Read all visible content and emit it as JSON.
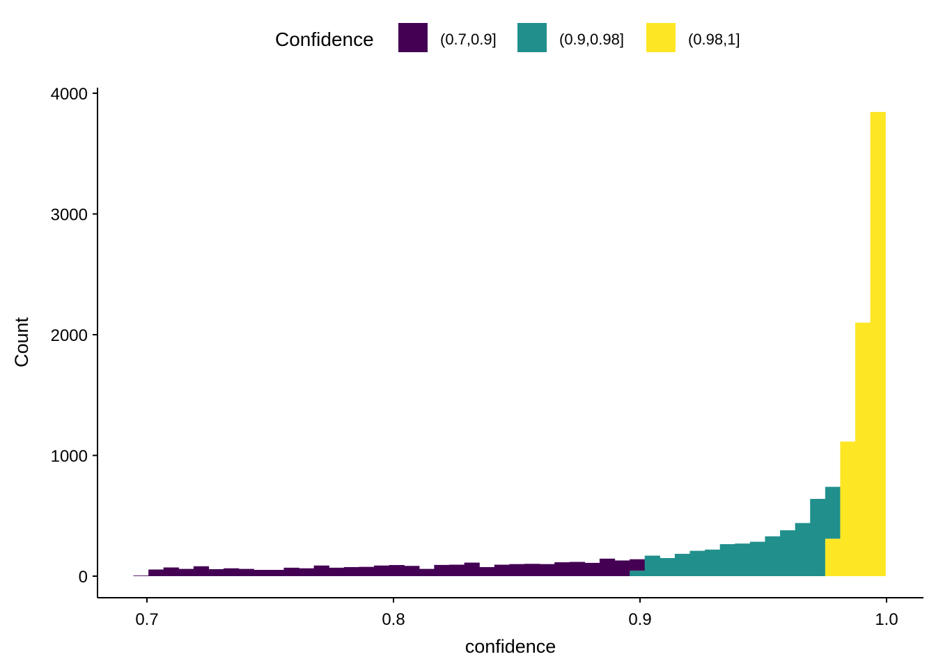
{
  "chart_data": {
    "type": "histogram",
    "xlabel": "confidence",
    "ylabel": "Count",
    "xlim": [
      0.68,
      1.015
    ],
    "ylim": [
      0,
      4000
    ],
    "x_ticks": [
      "0.7",
      "0.8",
      "0.9",
      "1.0"
    ],
    "x_tick_values": [
      0.7,
      0.8,
      0.9,
      1.0
    ],
    "y_ticks": [
      "0",
      "1000",
      "2000",
      "3000",
      "4000"
    ],
    "y_tick_values": [
      0,
      1000,
      2000,
      3000,
      4000
    ],
    "legend": {
      "title": "Confidence",
      "position": "top",
      "items": [
        {
          "label": "(0.7,0.9]",
          "color": "#440154"
        },
        {
          "label": "(0.9,0.98]",
          "color": "#21908C"
        },
        {
          "label": "(0.98,1]",
          "color": "#FDE725"
        }
      ]
    },
    "grid": false,
    "bin_width": 0.0061,
    "bins": [
      {
        "x0": 0.6945,
        "x1": 0.7006,
        "segments": [
          {
            "group": "(0.7,0.9]",
            "value": 5
          }
        ]
      },
      {
        "x0": 0.7006,
        "x1": 0.7067,
        "segments": [
          {
            "group": "(0.7,0.9]",
            "value": 55
          }
        ]
      },
      {
        "x0": 0.7067,
        "x1": 0.7128,
        "segments": [
          {
            "group": "(0.7,0.9]",
            "value": 72
          }
        ]
      },
      {
        "x0": 0.7128,
        "x1": 0.7189,
        "segments": [
          {
            "group": "(0.7,0.9]",
            "value": 60
          }
        ]
      },
      {
        "x0": 0.7189,
        "x1": 0.725,
        "segments": [
          {
            "group": "(0.7,0.9]",
            "value": 82
          }
        ]
      },
      {
        "x0": 0.725,
        "x1": 0.7311,
        "segments": [
          {
            "group": "(0.7,0.9]",
            "value": 58
          }
        ]
      },
      {
        "x0": 0.7311,
        "x1": 0.7372,
        "segments": [
          {
            "group": "(0.7,0.9]",
            "value": 65
          }
        ]
      },
      {
        "x0": 0.7372,
        "x1": 0.7433,
        "segments": [
          {
            "group": "(0.7,0.9]",
            "value": 60
          }
        ]
      },
      {
        "x0": 0.7433,
        "x1": 0.7494,
        "segments": [
          {
            "group": "(0.7,0.9]",
            "value": 52
          }
        ]
      },
      {
        "x0": 0.7494,
        "x1": 0.7555,
        "segments": [
          {
            "group": "(0.7,0.9]",
            "value": 52
          }
        ]
      },
      {
        "x0": 0.7555,
        "x1": 0.7616,
        "segments": [
          {
            "group": "(0.7,0.9]",
            "value": 70
          }
        ]
      },
      {
        "x0": 0.7616,
        "x1": 0.7677,
        "segments": [
          {
            "group": "(0.7,0.9]",
            "value": 65
          }
        ]
      },
      {
        "x0": 0.7677,
        "x1": 0.7738,
        "segments": [
          {
            "group": "(0.7,0.9]",
            "value": 88
          }
        ]
      },
      {
        "x0": 0.7738,
        "x1": 0.7799,
        "segments": [
          {
            "group": "(0.7,0.9]",
            "value": 70
          }
        ]
      },
      {
        "x0": 0.7799,
        "x1": 0.786,
        "segments": [
          {
            "group": "(0.7,0.9]",
            "value": 75
          }
        ]
      },
      {
        "x0": 0.786,
        "x1": 0.7921,
        "segments": [
          {
            "group": "(0.7,0.9]",
            "value": 77
          }
        ]
      },
      {
        "x0": 0.7921,
        "x1": 0.7982,
        "segments": [
          {
            "group": "(0.7,0.9]",
            "value": 88
          }
        ]
      },
      {
        "x0": 0.7982,
        "x1": 0.8043,
        "segments": [
          {
            "group": "(0.7,0.9]",
            "value": 92
          }
        ]
      },
      {
        "x0": 0.8043,
        "x1": 0.8104,
        "segments": [
          {
            "group": "(0.7,0.9]",
            "value": 85
          }
        ]
      },
      {
        "x0": 0.8104,
        "x1": 0.8165,
        "segments": [
          {
            "group": "(0.7,0.9]",
            "value": 60
          }
        ]
      },
      {
        "x0": 0.8165,
        "x1": 0.8226,
        "segments": [
          {
            "group": "(0.7,0.9]",
            "value": 93
          }
        ]
      },
      {
        "x0": 0.8226,
        "x1": 0.8287,
        "segments": [
          {
            "group": "(0.7,0.9]",
            "value": 95
          }
        ]
      },
      {
        "x0": 0.8287,
        "x1": 0.8348,
        "segments": [
          {
            "group": "(0.7,0.9]",
            "value": 112
          }
        ]
      },
      {
        "x0": 0.8348,
        "x1": 0.8409,
        "segments": [
          {
            "group": "(0.7,0.9]",
            "value": 75
          }
        ]
      },
      {
        "x0": 0.8409,
        "x1": 0.847,
        "segments": [
          {
            "group": "(0.7,0.9]",
            "value": 95
          }
        ]
      },
      {
        "x0": 0.847,
        "x1": 0.8531,
        "segments": [
          {
            "group": "(0.7,0.9]",
            "value": 100
          }
        ]
      },
      {
        "x0": 0.8531,
        "x1": 0.8592,
        "segments": [
          {
            "group": "(0.7,0.9]",
            "value": 102
          }
        ]
      },
      {
        "x0": 0.8592,
        "x1": 0.8653,
        "segments": [
          {
            "group": "(0.7,0.9]",
            "value": 100
          }
        ]
      },
      {
        "x0": 0.8653,
        "x1": 0.8714,
        "segments": [
          {
            "group": "(0.7,0.9]",
            "value": 115
          }
        ]
      },
      {
        "x0": 0.8714,
        "x1": 0.8775,
        "segments": [
          {
            "group": "(0.7,0.9]",
            "value": 118
          }
        ]
      },
      {
        "x0": 0.8775,
        "x1": 0.8836,
        "segments": [
          {
            "group": "(0.7,0.9]",
            "value": 110
          }
        ]
      },
      {
        "x0": 0.8836,
        "x1": 0.8897,
        "segments": [
          {
            "group": "(0.7,0.9]",
            "value": 145
          }
        ]
      },
      {
        "x0": 0.8897,
        "x1": 0.8958,
        "segments": [
          {
            "group": "(0.7,0.9]",
            "value": 130
          }
        ]
      },
      {
        "x0": 0.8958,
        "x1": 0.9019,
        "segments": [
          {
            "group": "(0.9,0.98]",
            "value": 45
          },
          {
            "group": "(0.7,0.9]",
            "value": 95
          }
        ]
      },
      {
        "x0": 0.9019,
        "x1": 0.908,
        "segments": [
          {
            "group": "(0.9,0.98]",
            "value": 170
          }
        ]
      },
      {
        "x0": 0.908,
        "x1": 0.9141,
        "segments": [
          {
            "group": "(0.9,0.98]",
            "value": 150
          }
        ]
      },
      {
        "x0": 0.9141,
        "x1": 0.9202,
        "segments": [
          {
            "group": "(0.9,0.98]",
            "value": 185
          }
        ]
      },
      {
        "x0": 0.9202,
        "x1": 0.9263,
        "segments": [
          {
            "group": "(0.9,0.98]",
            "value": 210
          }
        ]
      },
      {
        "x0": 0.9263,
        "x1": 0.9324,
        "segments": [
          {
            "group": "(0.9,0.98]",
            "value": 220
          }
        ]
      },
      {
        "x0": 0.9324,
        "x1": 0.9385,
        "segments": [
          {
            "group": "(0.9,0.98]",
            "value": 265
          }
        ]
      },
      {
        "x0": 0.9385,
        "x1": 0.9446,
        "segments": [
          {
            "group": "(0.9,0.98]",
            "value": 270
          }
        ]
      },
      {
        "x0": 0.9446,
        "x1": 0.9507,
        "segments": [
          {
            "group": "(0.9,0.98]",
            "value": 285
          }
        ]
      },
      {
        "x0": 0.9507,
        "x1": 0.9568,
        "segments": [
          {
            "group": "(0.9,0.98]",
            "value": 330
          }
        ]
      },
      {
        "x0": 0.9568,
        "x1": 0.9629,
        "segments": [
          {
            "group": "(0.9,0.98]",
            "value": 380
          }
        ]
      },
      {
        "x0": 0.9629,
        "x1": 0.969,
        "segments": [
          {
            "group": "(0.9,0.98]",
            "value": 440
          }
        ]
      },
      {
        "x0": 0.969,
        "x1": 0.9751,
        "segments": [
          {
            "group": "(0.9,0.98]",
            "value": 640
          }
        ]
      },
      {
        "x0": 0.9751,
        "x1": 0.9812,
        "segments": [
          {
            "group": "(0.98,1]",
            "value": 310
          },
          {
            "group": "(0.9,0.98]",
            "value": 430
          }
        ]
      },
      {
        "x0": 0.9812,
        "x1": 0.9873,
        "segments": [
          {
            "group": "(0.98,1]",
            "value": 1115
          }
        ]
      },
      {
        "x0": 0.9873,
        "x1": 0.9934,
        "segments": [
          {
            "group": "(0.98,1]",
            "value": 2100
          }
        ]
      },
      {
        "x0": 0.9934,
        "x1": 0.9995,
        "segments": [
          {
            "group": "(0.98,1]",
            "value": 3845
          }
        ]
      }
    ]
  }
}
